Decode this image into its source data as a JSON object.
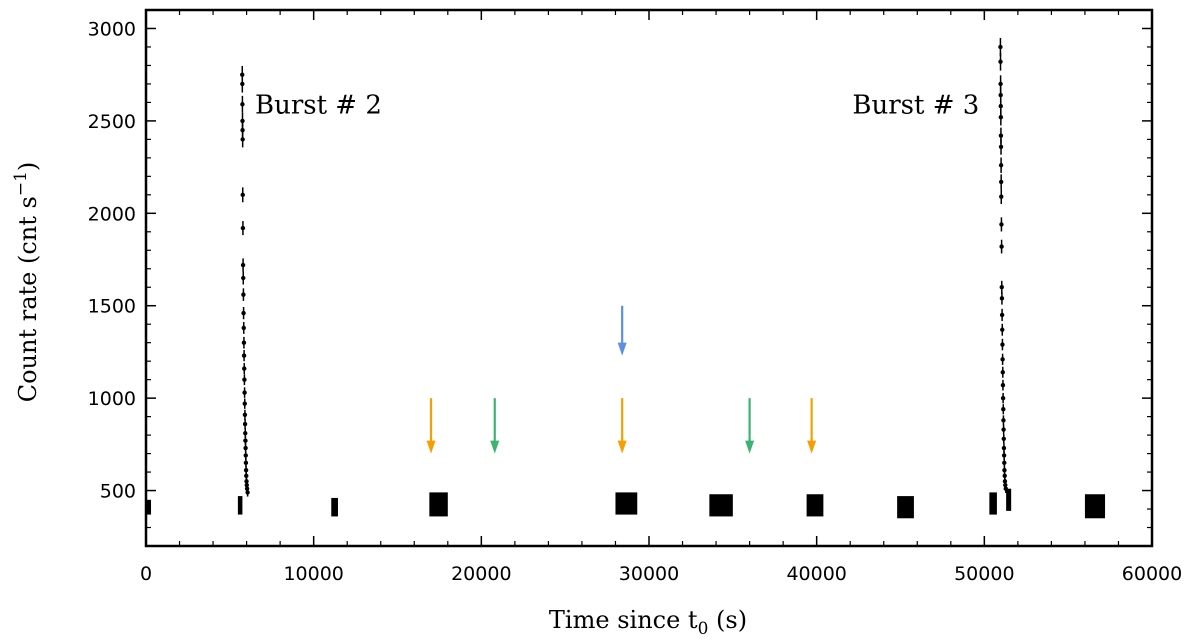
{
  "chart_data": {
    "type": "scatter",
    "title": "",
    "xlabel": "Time since t",
    "xlabel_sub": "0",
    "xlabel_unit": " (s)",
    "ylabel": "Count rate (cnt s",
    "ylabel_sup": "−1",
    "ylabel_end": ")",
    "xlim": [
      0,
      60000
    ],
    "ylim": [
      200,
      3100
    ],
    "x_ticks": [
      0,
      10000,
      20000,
      30000,
      40000,
      50000,
      60000
    ],
    "y_ticks": [
      500,
      1000,
      1500,
      2000,
      2500,
      3000
    ],
    "grid": false,
    "legend": "none",
    "point_color": "#000000",
    "segments": [
      {
        "start": 0,
        "end": 300,
        "low": 370,
        "high": 450
      },
      {
        "start": 5480,
        "end": 5750,
        "low": 370,
        "high": 470
      },
      {
        "start": 11050,
        "end": 11450,
        "low": 360,
        "high": 460
      },
      {
        "start": 16900,
        "end": 18000,
        "low": 360,
        "high": 490
      },
      {
        "start": 28000,
        "end": 29300,
        "low": 370,
        "high": 490
      },
      {
        "start": 33600,
        "end": 35000,
        "low": 360,
        "high": 480
      },
      {
        "start": 39400,
        "end": 40400,
        "low": 360,
        "high": 480
      },
      {
        "start": 44800,
        "end": 45800,
        "low": 350,
        "high": 470
      },
      {
        "start": 50300,
        "end": 50750,
        "low": 370,
        "high": 490
      },
      {
        "start": 51300,
        "end": 51600,
        "low": 390,
        "high": 510
      },
      {
        "start": 56000,
        "end": 57200,
        "low": 350,
        "high": 480
      }
    ],
    "bursts": [
      {
        "label": "Burst # 2",
        "points": [
          {
            "x": 5740,
            "y": 2750
          },
          {
            "x": 5745,
            "y": 2700
          },
          {
            "x": 5750,
            "y": 2590
          },
          {
            "x": 5755,
            "y": 2500
          },
          {
            "x": 5760,
            "y": 2450
          },
          {
            "x": 5765,
            "y": 2400
          },
          {
            "x": 5770,
            "y": 2100
          },
          {
            "x": 5780,
            "y": 1920
          },
          {
            "x": 5790,
            "y": 1720
          },
          {
            "x": 5800,
            "y": 1650
          },
          {
            "x": 5810,
            "y": 1560
          },
          {
            "x": 5820,
            "y": 1460
          },
          {
            "x": 5830,
            "y": 1380
          },
          {
            "x": 5840,
            "y": 1300
          },
          {
            "x": 5850,
            "y": 1230
          },
          {
            "x": 5860,
            "y": 1160
          },
          {
            "x": 5870,
            "y": 1100
          },
          {
            "x": 5880,
            "y": 1030
          },
          {
            "x": 5890,
            "y": 970
          },
          {
            "x": 5900,
            "y": 910
          },
          {
            "x": 5910,
            "y": 860
          },
          {
            "x": 5920,
            "y": 810
          },
          {
            "x": 5930,
            "y": 770
          },
          {
            "x": 5940,
            "y": 730
          },
          {
            "x": 5950,
            "y": 690
          },
          {
            "x": 5960,
            "y": 650
          },
          {
            "x": 5970,
            "y": 610
          },
          {
            "x": 5980,
            "y": 580
          },
          {
            "x": 5995,
            "y": 550
          },
          {
            "x": 6010,
            "y": 530
          },
          {
            "x": 6030,
            "y": 510
          },
          {
            "x": 6060,
            "y": 490
          }
        ]
      },
      {
        "label": "Burst # 3",
        "points": [
          {
            "x": 50960,
            "y": 2900
          },
          {
            "x": 50965,
            "y": 2820
          },
          {
            "x": 50970,
            "y": 2700
          },
          {
            "x": 50975,
            "y": 2640
          },
          {
            "x": 50980,
            "y": 2580
          },
          {
            "x": 50985,
            "y": 2520
          },
          {
            "x": 50990,
            "y": 2420
          },
          {
            "x": 50995,
            "y": 2360
          },
          {
            "x": 51000,
            "y": 2260
          },
          {
            "x": 51005,
            "y": 2170
          },
          {
            "x": 51010,
            "y": 2090
          },
          {
            "x": 51020,
            "y": 1940
          },
          {
            "x": 51030,
            "y": 1820
          },
          {
            "x": 51040,
            "y": 1600
          },
          {
            "x": 51050,
            "y": 1540
          },
          {
            "x": 51060,
            "y": 1450
          },
          {
            "x": 51070,
            "y": 1370
          },
          {
            "x": 51080,
            "y": 1290
          },
          {
            "x": 51090,
            "y": 1210
          },
          {
            "x": 51100,
            "y": 1140
          },
          {
            "x": 51110,
            "y": 1070
          },
          {
            "x": 51120,
            "y": 1000
          },
          {
            "x": 51130,
            "y": 940
          },
          {
            "x": 51140,
            "y": 880
          },
          {
            "x": 51150,
            "y": 830
          },
          {
            "x": 51160,
            "y": 780
          },
          {
            "x": 51170,
            "y": 730
          },
          {
            "x": 51180,
            "y": 690
          },
          {
            "x": 51190,
            "y": 650
          },
          {
            "x": 51200,
            "y": 610
          },
          {
            "x": 51215,
            "y": 580
          },
          {
            "x": 51230,
            "y": 550
          },
          {
            "x": 51250,
            "y": 530
          },
          {
            "x": 51280,
            "y": 510
          }
        ]
      }
    ],
    "annotations": [
      {
        "text": "Burst # 2",
        "x": 6500,
        "y": 2590,
        "anchor": "start"
      },
      {
        "text": "Burst # 3",
        "x": 49700,
        "y": 2590,
        "anchor": "end"
      }
    ],
    "arrows": [
      {
        "x": 17000,
        "y_top": 1000,
        "y_tip": 700,
        "color": "#f5a000"
      },
      {
        "x": 20800,
        "y_top": 1000,
        "y_tip": 700,
        "color": "#3cb371"
      },
      {
        "x": 28400,
        "y_top": 1000,
        "y_tip": 700,
        "color": "#f5a000"
      },
      {
        "x": 28400,
        "y_top": 1500,
        "y_tip": 1230,
        "color": "#5b8fe0"
      },
      {
        "x": 36000,
        "y_top": 1000,
        "y_tip": 700,
        "color": "#3cb371"
      },
      {
        "x": 39700,
        "y_top": 1000,
        "y_tip": 700,
        "color": "#f5a000"
      }
    ]
  }
}
